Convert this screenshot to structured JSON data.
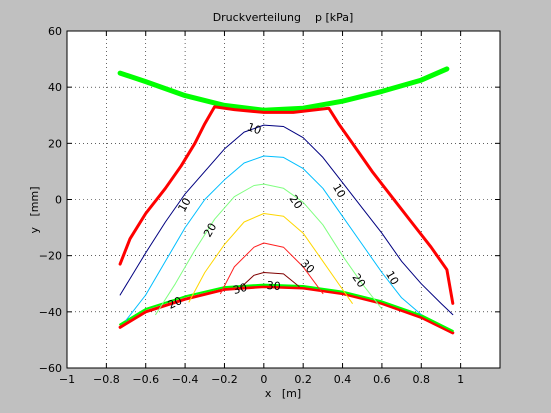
{
  "chart_data": {
    "type": "line",
    "title": "Druckverteilung    p [kPa]",
    "xlabel": "x   [m]",
    "ylabel": "y   [mm]",
    "xlim": [
      -1,
      1.2
    ],
    "ylim": [
      -60,
      60
    ],
    "xticks": [
      -1,
      -0.8,
      -0.6,
      -0.4,
      -0.2,
      0,
      0.2,
      0.4,
      0.6,
      0.8,
      1
    ],
    "xtick_labels": [
      "−1",
      "−0.8",
      "−0.6",
      "−0.4",
      "−0.2",
      "0",
      "0.2",
      "0.4",
      "0.6",
      "0.8",
      "1"
    ],
    "yticks": [
      -60,
      -40,
      -20,
      0,
      20,
      40,
      60
    ],
    "ytick_labels": [
      "−60",
      "−40",
      "−20",
      "0",
      "20",
      "40",
      "60"
    ],
    "grid": true,
    "colors": {
      "background": "#c0c0c0",
      "axes_background": "#ffffff",
      "grid": "#000000",
      "boundary": "#ff0000",
      "band": "#00ff00"
    },
    "series": [
      {
        "color": "#00ff00",
        "width": 5,
        "points": [
          [
            -0.73,
            45
          ],
          [
            -0.6,
            42
          ],
          [
            -0.4,
            37
          ],
          [
            -0.2,
            33.5
          ],
          [
            0,
            31.8
          ],
          [
            0.2,
            32.5
          ],
          [
            0.4,
            35
          ],
          [
            0.6,
            38.5
          ],
          [
            0.8,
            42.5
          ],
          [
            0.93,
            46.5
          ]
        ]
      },
      {
        "color": "#ff0000",
        "width": 3,
        "points": [
          [
            -0.73,
            -23
          ],
          [
            -0.68,
            -14
          ],
          [
            -0.6,
            -5
          ],
          [
            -0.5,
            4
          ],
          [
            -0.42,
            12
          ],
          [
            -0.35,
            20
          ],
          [
            -0.3,
            27
          ],
          [
            -0.25,
            33
          ],
          [
            -0.15,
            32
          ],
          [
            0,
            31
          ],
          [
            0.15,
            31
          ],
          [
            0.33,
            32.5
          ],
          [
            0.38,
            27
          ],
          [
            0.45,
            20
          ],
          [
            0.55,
            10
          ],
          [
            0.65,
            1
          ],
          [
            0.75,
            -8
          ],
          [
            0.85,
            -17
          ],
          [
            0.93,
            -25
          ],
          [
            0.96,
            -37
          ]
        ]
      },
      {
        "color": "#ff0000",
        "width": 3,
        "points": [
          [
            -0.73,
            -45.5
          ],
          [
            -0.6,
            -40
          ],
          [
            -0.4,
            -35.5
          ],
          [
            -0.2,
            -32
          ],
          [
            0,
            -31
          ],
          [
            0.2,
            -31.5
          ],
          [
            0.4,
            -33.5
          ],
          [
            0.6,
            -37
          ],
          [
            0.8,
            -42
          ],
          [
            0.96,
            -47.5
          ]
        ]
      },
      {
        "color": "#00ff00",
        "width": 2,
        "points": [
          [
            -0.73,
            -44.5
          ],
          [
            -0.6,
            -39
          ],
          [
            -0.4,
            -34.5
          ],
          [
            -0.2,
            -31.2
          ],
          [
            0,
            -30.3
          ],
          [
            0.2,
            -30.8
          ],
          [
            0.4,
            -32.8
          ],
          [
            0.6,
            -36.3
          ],
          [
            0.8,
            -41.2
          ],
          [
            0.96,
            -46.8
          ]
        ]
      },
      {
        "color": "#000080",
        "width": 1,
        "points": [
          [
            -0.73,
            -34
          ],
          [
            -0.6,
            -19
          ],
          [
            -0.5,
            -8
          ],
          [
            -0.4,
            2
          ],
          [
            -0.3,
            10
          ],
          [
            -0.2,
            18
          ],
          [
            -0.1,
            24
          ],
          [
            0,
            26.5
          ],
          [
            0.1,
            26
          ],
          [
            0.2,
            22
          ],
          [
            0.3,
            15
          ],
          [
            0.4,
            6
          ],
          [
            0.5,
            -3
          ],
          [
            0.6,
            -12
          ],
          [
            0.7,
            -22
          ],
          [
            0.8,
            -30
          ],
          [
            0.9,
            -37
          ],
          [
            0.96,
            -41
          ]
        ]
      },
      {
        "color": "#00bfff",
        "width": 1,
        "points": [
          [
            -0.7,
            -43
          ],
          [
            -0.6,
            -34
          ],
          [
            -0.5,
            -22
          ],
          [
            -0.4,
            -10
          ],
          [
            -0.3,
            0
          ],
          [
            -0.2,
            7
          ],
          [
            -0.1,
            13
          ],
          [
            0,
            15.5
          ],
          [
            0.1,
            15
          ],
          [
            0.2,
            11
          ],
          [
            0.3,
            4
          ],
          [
            0.4,
            -6
          ],
          [
            0.5,
            -16
          ],
          [
            0.6,
            -26
          ],
          [
            0.7,
            -35
          ],
          [
            0.8,
            -41
          ]
        ]
      },
      {
        "color": "#80ff80",
        "width": 1,
        "points": [
          [
            -0.55,
            -41
          ],
          [
            -0.45,
            -30
          ],
          [
            -0.35,
            -18
          ],
          [
            -0.25,
            -7
          ],
          [
            -0.15,
            1
          ],
          [
            -0.05,
            5
          ],
          [
            0,
            5.5
          ],
          [
            0.1,
            4
          ],
          [
            0.2,
            -1
          ],
          [
            0.3,
            -9
          ],
          [
            0.4,
            -20
          ],
          [
            0.5,
            -30
          ],
          [
            0.6,
            -39
          ]
        ]
      },
      {
        "color": "#ffd700",
        "width": 1,
        "points": [
          [
            -0.38,
            -36.5
          ],
          [
            -0.3,
            -26
          ],
          [
            -0.2,
            -16
          ],
          [
            -0.1,
            -8
          ],
          [
            0,
            -5
          ],
          [
            0.1,
            -6
          ],
          [
            0.2,
            -12
          ],
          [
            0.3,
            -22
          ],
          [
            0.4,
            -32
          ],
          [
            0.45,
            -37
          ]
        ]
      },
      {
        "color": "#ff2020",
        "width": 1,
        "points": [
          [
            -0.22,
            -33.5
          ],
          [
            -0.15,
            -24
          ],
          [
            -0.05,
            -17
          ],
          [
            0,
            -15.5
          ],
          [
            0.1,
            -17
          ],
          [
            0.2,
            -24
          ],
          [
            0.3,
            -33.5
          ]
        ]
      },
      {
        "color": "#800000",
        "width": 1,
        "points": [
          [
            -0.12,
            -31.5
          ],
          [
            -0.05,
            -27
          ],
          [
            0,
            -26
          ],
          [
            0.1,
            -26.5
          ],
          [
            0.18,
            -31
          ]
        ]
      }
    ],
    "contour_labels": [
      {
        "text": "10",
        "x": -0.05,
        "y": 25,
        "angle": 20
      },
      {
        "text": "10",
        "x": -0.4,
        "y": -2,
        "angle": -60
      },
      {
        "text": "10",
        "x": 0.38,
        "y": 3,
        "angle": 60
      },
      {
        "text": "10",
        "x": 0.65,
        "y": -28,
        "angle": 60
      },
      {
        "text": "20",
        "x": -0.27,
        "y": -11,
        "angle": -60
      },
      {
        "text": "20",
        "x": 0.16,
        "y": -1,
        "angle": 55
      },
      {
        "text": "20",
        "x": 0.48,
        "y": -29,
        "angle": 55
      },
      {
        "text": "30",
        "x": 0.22,
        "y": -24,
        "angle": 45
      },
      {
        "text": "30",
        "x": 0.05,
        "y": -31,
        "angle": 5
      },
      {
        "text": "20",
        "x": -0.45,
        "y": -37,
        "angle": -25
      },
      {
        "text": "30",
        "x": -0.12,
        "y": -32,
        "angle": -15
      }
    ]
  }
}
